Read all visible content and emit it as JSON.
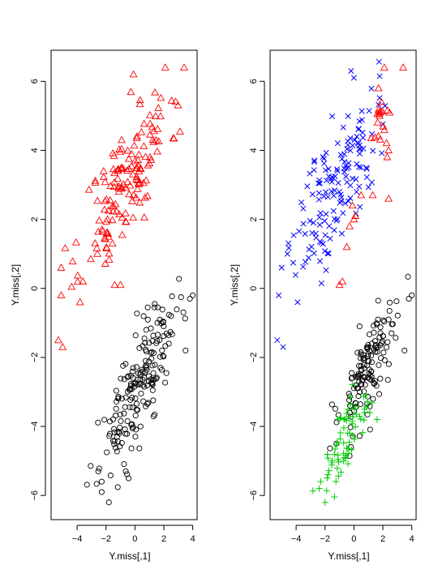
{
  "chart_data": [
    {
      "type": "scatter",
      "title": "",
      "xlabel": "Y.miss[,1]",
      "ylabel": "Y.miss[,2]",
      "xlim": [
        -5.8,
        4.3
      ],
      "ylim": [
        -6.7,
        6.9
      ],
      "xticks": [
        -4,
        -2,
        0,
        2,
        4
      ],
      "yticks": [
        -6,
        -4,
        -2,
        0,
        2,
        4,
        6
      ],
      "grid": false,
      "legend": "none",
      "series": [
        {
          "marker": "triangle",
          "color": "#ff0000",
          "clusters": [
            {
              "count": 150,
              "cx": -0.6,
              "cy": 3.1,
              "sx": 1.5,
              "sy": 1.3,
              "corr": 0.74,
              "seed": 11
            }
          ],
          "points": [
            [
              3.4,
              6.4
            ],
            [
              2.1,
              6.4
            ],
            [
              -0.1,
              6.2
            ],
            [
              -5.3,
              -1.5
            ],
            [
              -5.0,
              -1.7
            ],
            [
              -5.1,
              -0.2
            ],
            [
              -3.8,
              -0.4
            ],
            [
              -5.1,
              0.6
            ],
            [
              -1.0,
              0.1
            ],
            [
              -1.4,
              0.1
            ],
            [
              -2.6,
              1.0
            ]
          ]
        },
        {
          "marker": "circle",
          "color": "#000000",
          "clusters": [
            {
              "count": 190,
              "cx": 0.2,
              "cy": -2.9,
              "sx": 1.3,
              "sy": 1.2,
              "corr": 0.8,
              "seed": 23
            }
          ],
          "points": [
            [
              4.0,
              -0.2
            ],
            [
              3.8,
              -0.3
            ],
            [
              -2.3,
              -5.9
            ],
            [
              -2.3,
              -5.6
            ],
            [
              -1.8,
              -6.2
            ],
            [
              3.5,
              -1.8
            ],
            [
              2.5,
              -0.8
            ]
          ]
        }
      ]
    },
    {
      "type": "scatter",
      "title": "",
      "xlabel": "Y.miss[,1]",
      "ylabel": "Y.miss[,2]",
      "xlim": [
        -5.8,
        4.3
      ],
      "ylim": [
        -6.7,
        6.9
      ],
      "xticks": [
        -4,
        -2,
        0,
        2,
        4
      ],
      "yticks": [
        -6,
        -4,
        -2,
        0,
        2,
        4,
        6
      ],
      "grid": false,
      "legend": "none",
      "series": [
        {
          "marker": "cross",
          "color": "#0000ff",
          "clusters": [
            {
              "count": 150,
              "cx": -1.2,
              "cy": 3.0,
              "sx": 1.4,
              "sy": 1.3,
              "corr": 0.72,
              "seed": 37
            }
          ],
          "points": [
            [
              -0.2,
              6.3
            ],
            [
              0.0,
              6.1
            ],
            [
              -5.3,
              -1.5
            ],
            [
              -4.9,
              -1.7
            ],
            [
              -5.2,
              -0.2
            ],
            [
              -3.9,
              -0.4
            ],
            [
              -5.0,
              0.6
            ],
            [
              -4.6,
              1.0
            ]
          ]
        },
        {
          "marker": "triangle",
          "color": "#ff0000",
          "clusters": [
            {
              "count": 18,
              "cx": 1.8,
              "cy": 4.8,
              "sx": 0.4,
              "sy": 0.35,
              "corr": 0.4,
              "seed": 41
            }
          ],
          "points": [
            [
              3.4,
              6.4
            ],
            [
              2.1,
              6.4
            ],
            [
              1.7,
              5.8
            ],
            [
              1.9,
              5.4
            ],
            [
              0.5,
              2.7
            ],
            [
              1.3,
              2.7
            ],
            [
              2.4,
              2.6
            ],
            [
              -0.1,
              2.4
            ],
            [
              0.1,
              2.1
            ],
            [
              -0.3,
              1.8
            ],
            [
              -0.5,
              1.2
            ],
            [
              0.0,
              2.0
            ],
            [
              -1.0,
              0.1
            ],
            [
              -0.8,
              0.2
            ],
            [
              2.4,
              4.0
            ],
            [
              2.3,
              3.8
            ]
          ]
        },
        {
          "marker": "circle",
          "color": "#000000",
          "clusters": [
            {
              "count": 140,
              "cx": 1.0,
              "cy": -2.3,
              "sx": 1.0,
              "sy": 1.0,
              "corr": 0.75,
              "seed": 53
            }
          ],
          "points": [
            [
              4.0,
              -0.2
            ],
            [
              3.8,
              -0.3
            ],
            [
              3.5,
              -1.8
            ],
            [
              2.6,
              -1.3
            ],
            [
              2.4,
              -0.9
            ]
          ]
        },
        {
          "marker": "plus",
          "color": "#00cc00",
          "clusters": [
            {
              "count": 70,
              "cx": -0.5,
              "cy": -4.4,
              "sx": 0.8,
              "sy": 0.75,
              "corr": 0.7,
              "seed": 67
            }
          ],
          "points": [
            [
              -2.0,
              -6.2
            ],
            [
              -2.4,
              -5.8
            ],
            [
              -2.3,
              -5.6
            ],
            [
              -1.8,
              -5.4
            ],
            [
              1.6,
              -3.8
            ],
            [
              1.1,
              -3.6
            ]
          ]
        }
      ]
    }
  ]
}
